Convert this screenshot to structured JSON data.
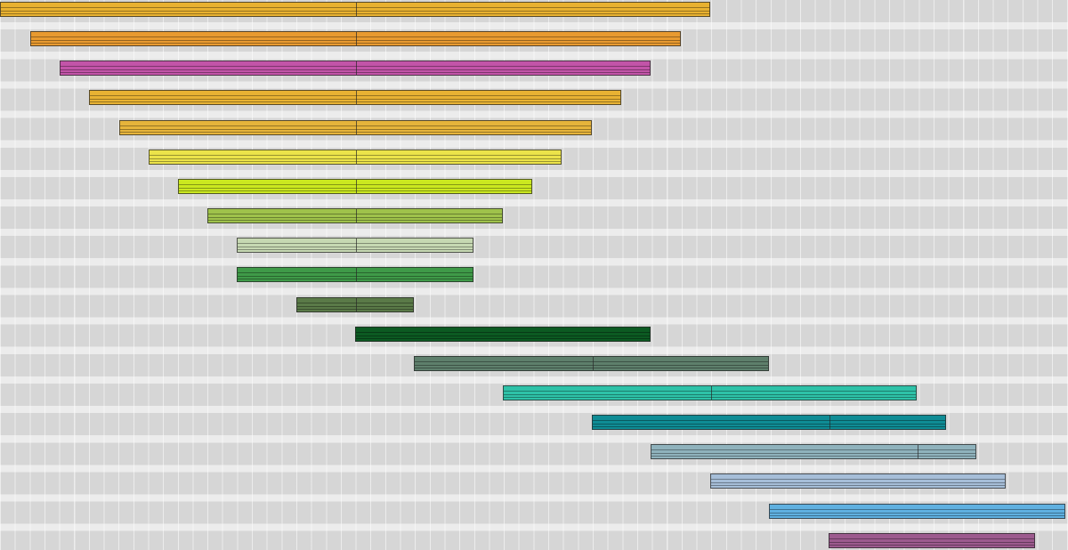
{
  "timeline": {
    "clips": [
      {
        "color": "#e8b130",
        "divider": true
      },
      {
        "color": "#e89a30",
        "divider": true
      },
      {
        "color": "#c254a8",
        "divider": true
      },
      {
        "color": "#e8b233",
        "divider": true
      },
      {
        "color": "#e6b43b",
        "divider": true
      },
      {
        "color": "#ece34a",
        "divider": true
      },
      {
        "color": "#cbe81f",
        "divider": true
      },
      {
        "color": "#9fc24b",
        "divider": true
      },
      {
        "color": "#c6d8b2",
        "divider": true
      },
      {
        "color": "#3f9a48",
        "divider": true
      },
      {
        "color": "#5a7a48",
        "divider": true
      },
      {
        "color": "#0c5a22",
        "divider": false
      },
      {
        "color": "#5e7f6c",
        "divider": true
      },
      {
        "color": "#2ec2a8",
        "divider": true
      },
      {
        "color": "#0f8c95",
        "divider": true
      },
      {
        "color": "#8fb2bc",
        "divider": true
      },
      {
        "color": "#a6bed8",
        "divider": false
      },
      {
        "color": "#5fb0e0",
        "divider": false
      },
      {
        "color": "#9c5a8e",
        "divider": false
      }
    ]
  }
}
